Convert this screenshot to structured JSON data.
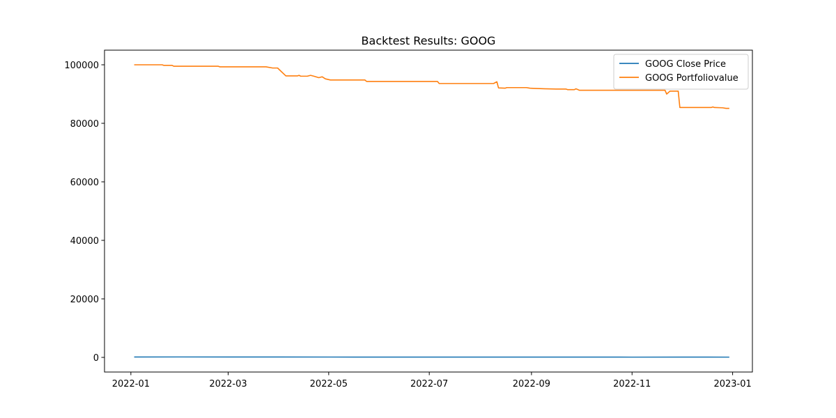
{
  "chart_data": {
    "type": "line",
    "title": "Backtest Results: GOOG",
    "xlabel": "",
    "ylabel": "",
    "xlim": [
      "2021-12-16",
      "2023-01-13"
    ],
    "ylim": [
      -5000,
      105000
    ],
    "x_ticks": [
      "2022-01",
      "2022-03",
      "2022-05",
      "2022-07",
      "2022-09",
      "2022-11",
      "2023-01"
    ],
    "y_ticks": [
      0,
      20000,
      40000,
      60000,
      80000,
      100000
    ],
    "grid": false,
    "legend_position": "top-right",
    "series": [
      {
        "name": "GOOG Close Price",
        "color": "#1f77b4",
        "points": [
          [
            "2022-01-03",
            145
          ],
          [
            "2022-02-01",
            148
          ],
          [
            "2022-03-01",
            134
          ],
          [
            "2022-04-01",
            141
          ],
          [
            "2022-05-02",
            117
          ],
          [
            "2022-06-01",
            114
          ],
          [
            "2022-07-01",
            108
          ],
          [
            "2022-08-01",
            115
          ],
          [
            "2022-09-01",
            110
          ],
          [
            "2022-10-03",
            100
          ],
          [
            "2022-11-01",
            90
          ],
          [
            "2022-12-01",
            100
          ],
          [
            "2022-12-30",
            89
          ]
        ]
      },
      {
        "name": "GOOG Portfoliovalue",
        "color": "#ff7f0e",
        "points": [
          [
            "2022-01-03",
            100000
          ],
          [
            "2022-01-20",
            100000
          ],
          [
            "2022-01-21",
            99800
          ],
          [
            "2022-01-26",
            99800
          ],
          [
            "2022-01-27",
            99500
          ],
          [
            "2022-02-23",
            99500
          ],
          [
            "2022-02-24",
            99300
          ],
          [
            "2022-03-24",
            99300
          ],
          [
            "2022-03-28",
            98900
          ],
          [
            "2022-03-31",
            98900
          ],
          [
            "2022-04-05",
            96200
          ],
          [
            "2022-04-12",
            96200
          ],
          [
            "2022-04-13",
            96400
          ],
          [
            "2022-04-14",
            96100
          ],
          [
            "2022-04-18",
            96100
          ],
          [
            "2022-04-20",
            96400
          ],
          [
            "2022-04-22",
            96100
          ],
          [
            "2022-04-25",
            95600
          ],
          [
            "2022-04-27",
            95900
          ],
          [
            "2022-04-29",
            95200
          ],
          [
            "2022-05-02",
            94800
          ],
          [
            "2022-05-23",
            94800
          ],
          [
            "2022-05-24",
            94300
          ],
          [
            "2022-07-06",
            94300
          ],
          [
            "2022-07-07",
            93600
          ],
          [
            "2022-08-09",
            93600
          ],
          [
            "2022-08-11",
            94200
          ],
          [
            "2022-08-12",
            92100
          ],
          [
            "2022-08-16",
            92000
          ],
          [
            "2022-08-17",
            92200
          ],
          [
            "2022-08-29",
            92200
          ],
          [
            "2022-08-31",
            92000
          ],
          [
            "2022-09-09",
            91800
          ],
          [
            "2022-09-16",
            91700
          ],
          [
            "2022-09-22",
            91700
          ],
          [
            "2022-09-23",
            91500
          ],
          [
            "2022-09-27",
            91500
          ],
          [
            "2022-09-28",
            91800
          ],
          [
            "2022-09-30",
            91300
          ],
          [
            "2022-11-21",
            91300
          ],
          [
            "2022-11-22",
            90000
          ],
          [
            "2022-11-24",
            91000
          ],
          [
            "2022-11-29",
            91000
          ],
          [
            "2022-11-30",
            85400
          ],
          [
            "2022-12-19",
            85400
          ],
          [
            "2022-12-20",
            85600
          ],
          [
            "2022-12-21",
            85400
          ],
          [
            "2022-12-26",
            85300
          ],
          [
            "2022-12-28",
            85100
          ],
          [
            "2022-12-30",
            85100
          ]
        ]
      }
    ]
  }
}
